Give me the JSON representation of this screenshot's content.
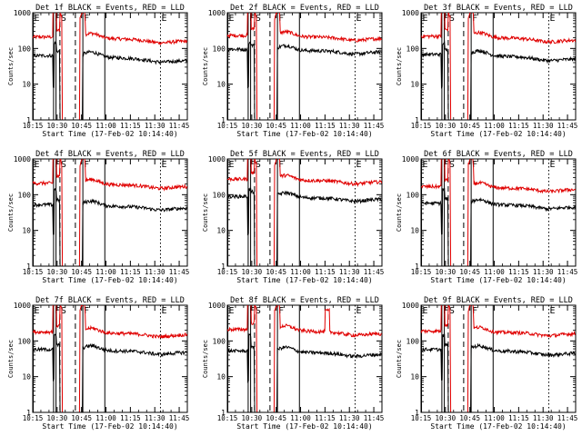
{
  "figure": {
    "panels": [
      {
        "title": "Det 1f BLACK = Events, RED = LLD",
        "xlabel": "Start Time (17-Feb-02 10:14:40)",
        "ylabel": "Counts/sec"
      },
      {
        "title": "Det 2f BLACK = Events, RED = LLD",
        "xlabel": "Start Time (17-Feb-02 10:14:40)",
        "ylabel": "Counts/sec"
      },
      {
        "title": "Det 3f BLACK = Events, RED = LLD",
        "xlabel": "Start Time (17-Feb-02 10:14:40)",
        "ylabel": "Counts/sec"
      },
      {
        "title": "Det 4f BLACK = Events, RED = LLD",
        "xlabel": "Start Time (17-Feb-02 10:14:40)",
        "ylabel": "Counts/sec"
      },
      {
        "title": "Det 5f BLACK = Events, RED = LLD",
        "xlabel": "Start Time (17-Feb-02 10:14:40)",
        "ylabel": "Counts/sec"
      },
      {
        "title": "Det 6f BLACK = Events, RED = LLD",
        "xlabel": "Start Time (17-Feb-02 10:14:40)",
        "ylabel": "Counts/sec"
      },
      {
        "title": "Det 7f BLACK = Events, RED = LLD",
        "xlabel": "Start Time (17-Feb-02 10:14:40)",
        "ylabel": "Counts/sec"
      },
      {
        "title": "Det 8f BLACK = Events, RED = LLD",
        "xlabel": "Start Time (17-Feb-02 10:14:40)",
        "ylabel": "Counts/sec"
      },
      {
        "title": "Det 9f BLACK = Events, RED = LLD",
        "xlabel": "Start Time (17-Feb-02 10:14:40)",
        "ylabel": "Counts/sec"
      }
    ]
  },
  "chart_data": {
    "type": "line",
    "layout": "3x3 grid",
    "y_scale": "log",
    "ylim": [
      1,
      1000
    ],
    "x_range_minutes": [
      0,
      95
    ],
    "x_tick_labels": [
      "10:15",
      "10:30",
      "10:45",
      "11:00",
      "11:15",
      "11:30",
      "11:45"
    ],
    "x_tick_minutes": [
      0,
      15,
      30,
      45,
      60,
      75,
      90
    ],
    "y_tick_labels": [
      "1",
      "10",
      "100",
      "1000"
    ],
    "y_tick_values": [
      1,
      10,
      100,
      1000
    ],
    "series_colors": {
      "events": "#000000",
      "lld": "#e00000"
    },
    "markers": [
      {
        "label": "E",
        "x": 0.3,
        "style": "solid"
      },
      {
        "label": "F",
        "x": 12.8,
        "style": "solid"
      },
      {
        "label": "",
        "x": 14.3,
        "style": "solid"
      },
      {
        "label": "S",
        "x": 16.7,
        "style": "dashed"
      },
      {
        "label": "",
        "x": 26.2,
        "style": "dashed"
      },
      {
        "label": "F",
        "x": 30.8,
        "style": "solid"
      },
      {
        "label": "",
        "x": 44.3,
        "style": "solid"
      },
      {
        "label": "E",
        "x": 78.5,
        "style": "dotted"
      }
    ],
    "panels": [
      {
        "events_base": 60,
        "events_end": 45,
        "lld_base": 200,
        "lld_end": 160
      },
      {
        "events_base": 90,
        "events_end": 80,
        "lld_base": 220,
        "lld_end": 190
      },
      {
        "events_base": 65,
        "events_end": 50,
        "lld_base": 210,
        "lld_end": 170
      },
      {
        "events_base": 50,
        "events_end": 42,
        "lld_base": 200,
        "lld_end": 170
      },
      {
        "events_base": 85,
        "events_end": 75,
        "lld_base": 260,
        "lld_end": 230
      },
      {
        "events_base": 55,
        "events_end": 45,
        "lld_base": 160,
        "lld_end": 140
      },
      {
        "events_base": 55,
        "events_end": 48,
        "lld_base": 170,
        "lld_end": 150
      },
      {
        "events_base": 50,
        "events_end": 42,
        "lld_base": 200,
        "lld_end": 160,
        "lld_bump": {
          "from": 60,
          "to": 63,
          "value": 700
        }
      },
      {
        "events_base": 55,
        "events_end": 45,
        "lld_base": 180,
        "lld_end": 160
      }
    ]
  }
}
